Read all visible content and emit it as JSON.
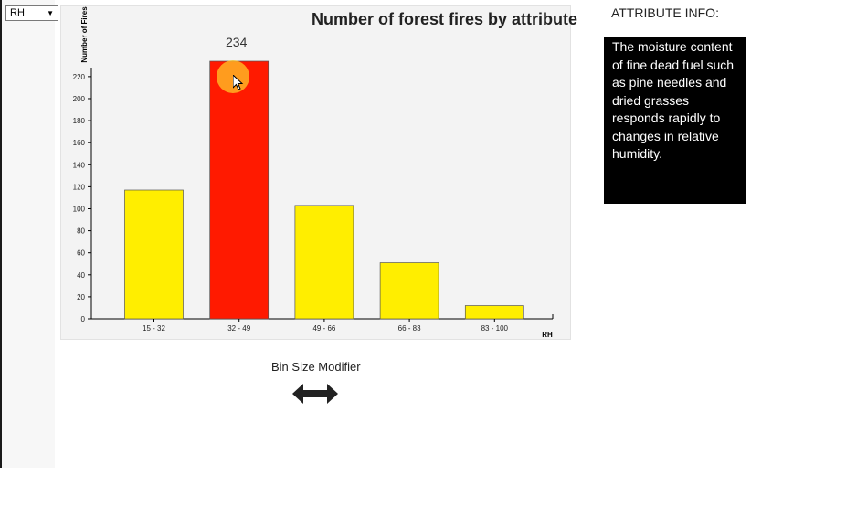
{
  "controls": {
    "attribute_select": {
      "value": "RH"
    },
    "bin_size_label": "Bin Size Modifier"
  },
  "info": {
    "heading": "ATTRIBUTE INFO:",
    "text": "The moisture content of fine dead fuel such as pine needles and dried grasses responds rapidly to changes in relative humidity."
  },
  "colors": {
    "bar": "#ffee00",
    "bar_highlight": "#ff1a00",
    "info_bg": "#000000"
  },
  "chart_data": {
    "type": "bar",
    "title": "Number of forest fires by attribute",
    "xlabel": "RH",
    "ylabel": "Number of Fires",
    "categories": [
      "15 - 32",
      "32 - 49",
      "49 - 66",
      "66 - 83",
      "83 - 100"
    ],
    "values": [
      117,
      234,
      103,
      51,
      12
    ],
    "highlighted_index": 1,
    "highlight_label": "234",
    "ylim": [
      0,
      234
    ],
    "yticks": [
      0,
      20,
      40,
      60,
      80,
      100,
      120,
      140,
      160,
      180,
      200,
      220
    ],
    "grid": false
  }
}
